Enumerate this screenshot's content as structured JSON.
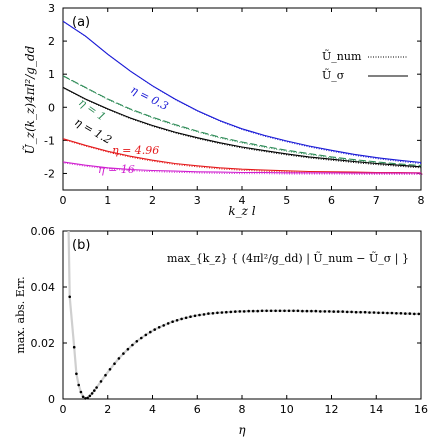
{
  "chart_data": [
    {
      "type": "line",
      "panel_label": "(a)",
      "xlabel": "k_z l",
      "ylabel": "Ũ_z(k_z)4πl²/g_dd",
      "xlim": [
        0,
        8
      ],
      "ylim": [
        -2.5,
        3
      ],
      "xticks": [
        "0",
        "1",
        "2",
        "3",
        "4",
        "5",
        "6",
        "7",
        "8"
      ],
      "yticks": [
        "-2",
        "-1",
        "0",
        "1",
        "2",
        "3"
      ],
      "legend": [
        "Ũ_num",
        "Ũ_σ"
      ],
      "legend_position": "top-right",
      "series": [
        {
          "name": "η = 0.3",
          "color": "#1a1ad6",
          "x": [
            0,
            0.5,
            1,
            1.5,
            2,
            2.5,
            3,
            3.5,
            4,
            4.5,
            5,
            5.5,
            6,
            6.5,
            7,
            7.5,
            8
          ],
          "values": [
            2.6,
            2.15,
            1.6,
            1.1,
            0.65,
            0.25,
            -0.1,
            -0.4,
            -0.65,
            -0.85,
            -1.02,
            -1.17,
            -1.3,
            -1.42,
            -1.52,
            -1.6,
            -1.67
          ]
        },
        {
          "name": "η = 1",
          "color": "#2e8b57",
          "x": [
            0,
            0.5,
            1,
            1.5,
            2,
            2.5,
            3,
            3.5,
            4,
            4.5,
            5,
            5.5,
            6,
            6.5,
            7,
            7.5,
            8
          ],
          "values": [
            0.95,
            0.6,
            0.25,
            -0.05,
            -0.3,
            -0.52,
            -0.72,
            -0.9,
            -1.05,
            -1.18,
            -1.3,
            -1.4,
            -1.5,
            -1.58,
            -1.65,
            -1.71,
            -1.76
          ]
        },
        {
          "name": "η = 1.2",
          "color": "#000000",
          "x": [
            0,
            0.5,
            1,
            1.5,
            2,
            2.5,
            3,
            3.5,
            4,
            4.5,
            5,
            5.5,
            6,
            6.5,
            7,
            7.5,
            8
          ],
          "values": [
            0.6,
            0.25,
            -0.05,
            -0.32,
            -0.55,
            -0.75,
            -0.92,
            -1.07,
            -1.2,
            -1.31,
            -1.41,
            -1.5,
            -1.57,
            -1.64,
            -1.7,
            -1.75,
            -1.8
          ]
        },
        {
          "name": "η = 4.96",
          "color": "#e41a1c",
          "x": [
            0,
            0.5,
            1,
            1.5,
            2,
            2.5,
            3,
            3.5,
            4,
            4.5,
            5,
            5.5,
            6,
            6.5,
            7,
            7.5,
            8
          ],
          "values": [
            -0.95,
            -1.15,
            -1.33,
            -1.48,
            -1.6,
            -1.7,
            -1.77,
            -1.83,
            -1.87,
            -1.9,
            -1.92,
            -1.94,
            -1.95,
            -1.96,
            -1.97,
            -1.97,
            -1.98
          ]
        },
        {
          "name": "η = 16",
          "color": "#d020d0",
          "x": [
            0,
            0.5,
            1,
            1.5,
            2,
            2.5,
            3,
            3.5,
            4,
            4.5,
            5,
            5.5,
            6,
            6.5,
            7,
            7.5,
            8
          ],
          "values": [
            -1.65,
            -1.75,
            -1.83,
            -1.88,
            -1.91,
            -1.93,
            -1.95,
            -1.96,
            -1.97,
            -1.97,
            -1.98,
            -1.98,
            -1.98,
            -1.99,
            -1.99,
            -1.99,
            -1.99
          ]
        }
      ],
      "annotations": [
        "η = 0.3",
        "η = 1",
        "η = 1.2",
        "η = 4.96",
        "η = 16"
      ]
    },
    {
      "type": "scatter",
      "panel_label": "(b)",
      "xlabel": "η",
      "ylabel": "max. abs. Err.",
      "title": "max_{k_z} { (4πl²/g_dd) | Ũ_num − Ũ_σ | }",
      "xlim": [
        0,
        16
      ],
      "ylim": [
        0,
        0.06
      ],
      "xticks": [
        "0",
        "2",
        "4",
        "6",
        "8",
        "10",
        "12",
        "14",
        "16"
      ],
      "yticks": [
        "0",
        "0.02",
        "0.04",
        "0.06"
      ],
      "x": [
        0.3,
        0.5,
        0.6,
        0.7,
        0.8,
        0.9,
        1.0,
        1.1,
        1.2,
        1.3,
        1.4,
        1.5,
        1.7,
        1.9,
        2.1,
        2.3,
        2.5,
        2.7,
        2.9,
        3.1,
        3.3,
        3.5,
        3.7,
        3.9,
        4.1,
        4.3,
        4.5,
        4.7,
        4.9,
        5.1,
        5.3,
        5.5,
        5.7,
        5.9,
        6.1,
        6.3,
        6.5,
        6.7,
        6.9,
        7.1,
        7.3,
        7.5,
        7.7,
        7.9,
        8.1,
        8.3,
        8.5,
        8.7,
        8.9,
        9.1,
        9.3,
        9.5,
        9.7,
        9.9,
        10.1,
        10.3,
        10.5,
        10.7,
        10.9,
        11.1,
        11.3,
        11.5,
        11.7,
        11.9,
        12.1,
        12.3,
        12.5,
        12.7,
        12.9,
        13.1,
        13.3,
        13.5,
        13.7,
        13.9,
        14.1,
        14.3,
        14.5,
        14.7,
        14.9,
        15.1,
        15.3,
        15.5,
        15.7,
        15.9
      ],
      "values": [
        0.0365,
        0.0185,
        0.009,
        0.005,
        0.0025,
        0.0008,
        0.0002,
        0.0004,
        0.0011,
        0.002,
        0.003,
        0.0041,
        0.0063,
        0.0085,
        0.0106,
        0.0126,
        0.0145,
        0.0162,
        0.0178,
        0.0193,
        0.0206,
        0.0218,
        0.0229,
        0.0239,
        0.0248,
        0.0256,
        0.0263,
        0.027,
        0.0276,
        0.0281,
        0.0286,
        0.029,
        0.0294,
        0.0297,
        0.03,
        0.0302,
        0.0305,
        0.0306,
        0.0308,
        0.0309,
        0.031,
        0.0311,
        0.0312,
        0.0313,
        0.0313,
        0.0314,
        0.0314,
        0.0314,
        0.0315,
        0.0315,
        0.0315,
        0.0315,
        0.0315,
        0.0315,
        0.0315,
        0.0315,
        0.0315,
        0.0314,
        0.0314,
        0.0314,
        0.0314,
        0.0313,
        0.0313,
        0.0313,
        0.0312,
        0.0312,
        0.0312,
        0.0311,
        0.0311,
        0.031,
        0.031,
        0.031,
        0.0309,
        0.0309,
        0.0308,
        0.0308,
        0.0307,
        0.0307,
        0.0306,
        0.0306,
        0.0305,
        0.0305,
        0.0304,
        0.0304
      ],
      "trend_color": "#cfcfcf"
    }
  ]
}
